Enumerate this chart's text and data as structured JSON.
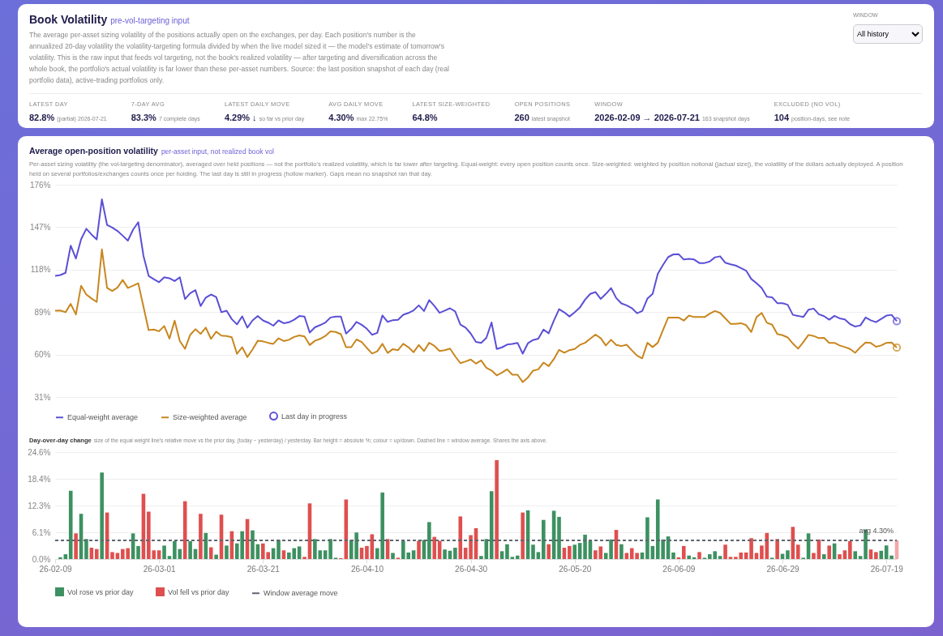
{
  "chart_data": [
    {
      "type": "other",
      "title": "Book Volatility",
      "subtitle": "pre-vol-targeting input",
      "annotations": [
        "The average per-asset sizing volatility of the positions actually open on the exchanges, per day. Each position's number is the annualized 20-day volatility the volatility-targeting formula divided by when the live model sized it — the model's estimate of tomorrow's volatility. This is the raw input that feeds vol targeting, not the book's realized volatility — after targeting and diversification across the whole book, the portfolio's actual volatility is far lower than these per-asset numbers. Source: the last position snapshot of each day (real portfolio data), active-trading portfolios only.",
        "WINDOW",
        "All history",
        "LATEST DAY",
        "82.8%",
        "(partial) 2026-07-21",
        "7-DAY AVG",
        "83.3%",
        "7 complete days",
        "LATEST DAILY MOVE",
        "4.29% ↓",
        "so far vs prior day",
        "AVG DAILY MOVE",
        "4.30%",
        "max 22.75%",
        "LATEST SIZE-WEIGHTED",
        "64.8%",
        "OPEN POSITIONS",
        "260",
        "latest snapshot",
        "WINDOW",
        "2026-02-09 → 2026-07-21",
        "163 snapshot days",
        "EXCLUDED (NO VOL)",
        "104",
        "position-days, see note"
      ]
    },
    {
      "type": "line",
      "title": "Average open-position volatility",
      "subtitle": "per-asset input, not realized book vol",
      "annotations": [
        "Per-asset sizing volatility (the vol-targeting denominator), averaged over held positions — not the portfolio's realized volatility, which is far lower after targeting. Equal-weight: every open position counts once. Size-weighted: weighted by position notional (|actual size|), the volatility of the dollars actually deployed. A position held on several portfolios/exchanges counts once per holding. The last day is still in progress (hollow marker). Gaps mean no snapshot ran that day."
      ],
      "x": [
        "2026-02-09",
        "2026-02-10",
        "2026-02-11",
        "2026-02-12",
        "2026-02-13",
        "2026-02-14",
        "2026-02-15",
        "2026-02-16",
        "2026-02-17",
        "2026-02-18",
        "2026-02-19",
        "2026-02-20",
        "2026-02-21",
        "2026-02-22",
        "2026-02-23",
        "2026-02-24",
        "2026-02-25",
        "2026-02-26",
        "2026-02-27",
        "2026-02-28",
        "2026-03-01",
        "2026-03-02",
        "2026-03-03",
        "2026-03-04",
        "2026-03-05",
        "2026-03-06",
        "2026-03-07",
        "2026-03-08",
        "2026-03-09",
        "2026-03-10",
        "2026-03-11",
        "2026-03-12",
        "2026-03-13",
        "2026-03-14",
        "2026-03-15",
        "2026-03-16",
        "2026-03-17",
        "2026-03-18",
        "2026-03-19",
        "2026-03-20",
        "2026-03-21",
        "2026-03-22",
        "2026-03-23",
        "2026-03-24",
        "2026-03-25",
        "2026-03-26",
        "2026-03-27",
        "2026-03-28",
        "2026-03-29",
        "2026-03-30",
        "2026-03-31",
        "2026-04-01",
        "2026-04-02",
        "2026-04-03",
        "2026-04-04",
        "2026-04-05",
        "2026-04-06",
        "2026-04-07",
        "2026-04-08",
        "2026-04-09",
        "2026-04-10",
        "2026-04-11",
        "2026-04-12",
        "2026-04-13",
        "2026-04-14",
        "2026-04-15",
        "2026-04-16",
        "2026-04-17",
        "2026-04-18",
        "2026-04-19",
        "2026-04-20",
        "2026-04-21",
        "2026-04-22",
        "2026-04-23",
        "2026-04-24",
        "2026-04-25",
        "2026-04-26",
        "2026-04-27",
        "2026-04-28",
        "2026-04-29",
        "2026-04-30",
        "2026-05-01",
        "2026-05-02",
        "2026-05-03",
        "2026-05-04",
        "2026-05-05",
        "2026-05-06",
        "2026-05-07",
        "2026-05-08",
        "2026-05-09",
        "2026-05-10",
        "2026-05-11",
        "2026-05-12",
        "2026-05-13",
        "2026-05-14",
        "2026-05-15",
        "2026-05-16",
        "2026-05-17",
        "2026-05-18",
        "2026-05-19",
        "2026-05-20",
        "2026-05-21",
        "2026-05-22",
        "2026-05-23",
        "2026-05-24",
        "2026-05-25",
        "2026-05-26",
        "2026-05-27",
        "2026-05-28",
        "2026-05-29",
        "2026-05-30",
        "2026-05-31",
        "2026-06-01",
        "2026-06-02",
        "2026-06-03",
        "2026-06-04",
        "2026-06-05",
        "2026-06-06",
        "2026-06-07",
        "2026-06-08",
        "2026-06-09",
        "2026-06-10",
        "2026-06-11",
        "2026-06-12",
        "2026-06-13",
        "2026-06-14",
        "2026-06-15",
        "2026-06-16",
        "2026-06-17",
        "2026-06-18",
        "2026-06-19",
        "2026-06-20",
        "2026-06-21",
        "2026-06-22",
        "2026-06-23",
        "2026-06-24",
        "2026-06-25",
        "2026-06-26",
        "2026-06-27",
        "2026-06-28",
        "2026-06-29",
        "2026-06-30",
        "2026-07-01",
        "2026-07-02",
        "2026-07-03",
        "2026-07-04",
        "2026-07-05",
        "2026-07-06",
        "2026-07-07",
        "2026-07-08",
        "2026-07-09",
        "2026-07-10",
        "2026-07-11",
        "2026-07-12",
        "2026-07-13",
        "2026-07-14",
        "2026-07-15",
        "2026-07-16",
        "2026-07-17",
        "2026-07-18",
        "2026-07-19",
        "2026-07-20",
        "2026-07-21"
      ],
      "series": [
        {
          "name": "Equal-weight average",
          "color": "#5b4fd6",
          "values": [
            113.7,
            114.3,
            115.8,
            134.4,
            125.6,
            138.8,
            145.9,
            142.0,
            138.6,
            166.0,
            148.5,
            146.7,
            144.4,
            141.2,
            137.8,
            145.3,
            150.4,
            127.5,
            113.7,
            111.5,
            109.4,
            112.8,
            112.1,
            110.2,
            112.8,
            97.9,
            101.9,
            104.0,
            93.1,
            98.9,
            101.0,
            99.3,
            88.9,
            89.9,
            84.2,
            80.6,
            86.1,
            78.4,
            83.3,
            86.3,
            83.3,
            81.8,
            79.7,
            83.3,
            81.4,
            82.0,
            83.8,
            86.3,
            85.9,
            75.0,
            78.6,
            80.1,
            81.8,
            85.3,
            85.9,
            85.9,
            74.3,
            77.6,
            82.3,
            80.3,
            77.6,
            73.5,
            74.8,
            86.7,
            82.3,
            83.5,
            83.7,
            87.2,
            88.4,
            90.2,
            93.6,
            89.7,
            97.2,
            93.2,
            88.5,
            90.0,
            91.6,
            89.5,
            80.5,
            78.4,
            74.3,
            68.6,
            67.9,
            71.4,
            81.9,
            63.8,
            64.9,
            66.8,
            67.3,
            68.0,
            60.6,
            67.7,
            69.9,
            70.8,
            77.1,
            74.5,
            83.2,
            91.0,
            88.8,
            86.0,
            88.8,
            92.1,
            97.5,
            101.4,
            102.7,
            98.0,
            101.4,
            105.4,
            98.6,
            94.9,
            93.6,
            91.7,
            88.2,
            89.7,
            98.2,
            101.4,
            115.1,
            121.2,
            126.6,
            128.4,
            128.6,
            124.9,
            125.4,
            124.9,
            122.5,
            122.5,
            123.6,
            126.4,
            127.1,
            122.7,
            121.6,
            120.8,
            119.1,
            117.3,
            111.6,
            108.8,
            105.4,
            99.5,
            99.1,
            95.1,
            95.1,
            94.0,
            87.1,
            86.4,
            85.6,
            90.6,
            91.4,
            87.5,
            86.2,
            83.8,
            86.4,
            84.7,
            84.0,
            80.8,
            79.1,
            79.9,
            85.3,
            83.4,
            82.1,
            84.3,
            86.6,
            87.1,
            82.8
          ]
        },
        {
          "name": "Size-weighted average",
          "color": "#c8861e",
          "values": [
            89.9,
            90.1,
            88.9,
            94.6,
            87.4,
            107.0,
            101.0,
            98.3,
            95.9,
            131.8,
            105.5,
            103.4,
            105.8,
            110.9,
            105.5,
            107.0,
            108.7,
            92.7,
            76.7,
            77.1,
            75.9,
            79.5,
            70.9,
            83.1,
            69.2,
            63.9,
            73.5,
            77.3,
            74.1,
            78.4,
            70.7,
            75.6,
            72.9,
            72.6,
            71.8,
            60.5,
            65.0,
            58.3,
            63.5,
            69.4,
            69.0,
            68.0,
            67.3,
            71.1,
            69.2,
            70.1,
            72.0,
            73.1,
            72.4,
            66.5,
            69.4,
            70.7,
            72.7,
            75.8,
            75.4,
            73.9,
            65.0,
            65.0,
            70.3,
            68.6,
            64.5,
            60.7,
            62.2,
            67.3,
            61.1,
            63.7,
            63.0,
            67.3,
            65.0,
            61.6,
            66.5,
            62.4,
            68.0,
            65.9,
            62.4,
            63.0,
            64.1,
            58.8,
            54.1,
            55.3,
            56.6,
            53.8,
            56.0,
            51.0,
            49.1,
            45.8,
            47.7,
            49.9,
            46.2,
            46.2,
            41.2,
            44.3,
            49.0,
            49.9,
            54.5,
            52.1,
            56.9,
            63.2,
            61.2,
            63.0,
            63.8,
            66.6,
            68.0,
            70.8,
            73.6,
            71.2,
            66.2,
            70.1,
            66.6,
            65.8,
            66.7,
            62.9,
            59.3,
            57.4,
            68.0,
            65.1,
            68.0,
            76.7,
            85.3,
            85.3,
            85.3,
            83.2,
            86.6,
            85.6,
            85.6,
            85.6,
            87.9,
            89.7,
            88.4,
            84.7,
            81.0,
            81.0,
            81.4,
            80.1,
            75.4,
            85.6,
            88.4,
            81.7,
            80.4,
            74.0,
            73.2,
            71.7,
            67.5,
            64.0,
            68.4,
            73.4,
            72.7,
            71.2,
            71.4,
            67.9,
            68.0,
            66.2,
            65.1,
            63.8,
            61.2,
            65.1,
            68.2,
            67.9,
            65.3,
            66.2,
            68.0,
            68.2,
            64.8
          ]
        },
        {
          "name": "Last day in progress",
          "type": "scatter",
          "color": "#5b4fd6",
          "colors": [
            "#5b4fd6",
            "#c8861e"
          ],
          "x": [
            "2026-07-21",
            "2026-07-21"
          ],
          "values": [
            82.8,
            64.8
          ]
        }
      ],
      "xlim": [
        "2026-02-09",
        "2026-07-21"
      ],
      "ylim": [
        31,
        176
      ],
      "yticks": [
        {
          "value": 31,
          "label": "31%"
        },
        {
          "value": 60,
          "label": "60%"
        },
        {
          "value": 89,
          "label": "89%"
        },
        {
          "value": 118,
          "label": "118%"
        },
        {
          "value": 147,
          "label": "147%"
        },
        {
          "value": 176,
          "label": "176%"
        }
      ],
      "tick_labels": "y",
      "grid": "y",
      "legend": "bottom"
    },
    {
      "type": "bar",
      "title": "Day-over-day change",
      "subtitle": "size of the equal weight line's relative move vs the prior day, (today − yesterday) / yesterday. Bar height = absolute %; colour = up/down. Dashed line = window average. Shares the axis above.",
      "annotations": [
        {
          "text": "avg 4.30%",
          "x": "2026-07-21",
          "y": 4.3
        }
      ],
      "x": [
        "2026-02-10",
        "2026-02-11",
        "2026-02-12",
        "2026-02-13",
        "2026-02-14",
        "2026-02-15",
        "2026-02-16",
        "2026-02-17",
        "2026-02-18",
        "2026-02-19",
        "2026-02-20",
        "2026-02-21",
        "2026-02-22",
        "2026-02-23",
        "2026-02-24",
        "2026-02-25",
        "2026-02-26",
        "2026-02-27",
        "2026-02-28",
        "2026-03-01",
        "2026-03-02",
        "2026-03-03",
        "2026-03-04",
        "2026-03-05",
        "2026-03-06",
        "2026-03-07",
        "2026-03-08",
        "2026-03-09",
        "2026-03-10",
        "2026-03-11",
        "2026-03-12",
        "2026-03-13",
        "2026-03-14",
        "2026-03-15",
        "2026-03-16",
        "2026-03-17",
        "2026-03-18",
        "2026-03-19",
        "2026-03-20",
        "2026-03-21",
        "2026-03-22",
        "2026-03-23",
        "2026-03-24",
        "2026-03-25",
        "2026-03-26",
        "2026-03-27",
        "2026-03-28",
        "2026-03-29",
        "2026-03-30",
        "2026-03-31",
        "2026-04-01",
        "2026-04-02",
        "2026-04-03",
        "2026-04-04",
        "2026-04-05",
        "2026-04-06",
        "2026-04-07",
        "2026-04-08",
        "2026-04-09",
        "2026-04-10",
        "2026-04-11",
        "2026-04-12",
        "2026-04-13",
        "2026-04-14",
        "2026-04-15",
        "2026-04-16",
        "2026-04-17",
        "2026-04-18",
        "2026-04-19",
        "2026-04-20",
        "2026-04-21",
        "2026-04-22",
        "2026-04-23",
        "2026-04-24",
        "2026-04-25",
        "2026-04-26",
        "2026-04-27",
        "2026-04-28",
        "2026-04-29",
        "2026-04-30",
        "2026-05-01",
        "2026-05-02",
        "2026-05-03",
        "2026-05-04",
        "2026-05-05",
        "2026-05-06",
        "2026-05-07",
        "2026-05-08",
        "2026-05-09",
        "2026-05-10",
        "2026-05-11",
        "2026-05-12",
        "2026-05-13",
        "2026-05-14",
        "2026-05-15",
        "2026-05-16",
        "2026-05-17",
        "2026-05-18",
        "2026-05-19",
        "2026-05-20",
        "2026-05-21",
        "2026-05-22",
        "2026-05-23",
        "2026-05-24",
        "2026-05-25",
        "2026-05-26",
        "2026-05-27",
        "2026-05-28",
        "2026-05-29",
        "2026-05-30",
        "2026-05-31",
        "2026-06-01",
        "2026-06-02",
        "2026-06-03",
        "2026-06-04",
        "2026-06-05",
        "2026-06-06",
        "2026-06-07",
        "2026-06-08",
        "2026-06-09",
        "2026-06-10",
        "2026-06-11",
        "2026-06-12",
        "2026-06-13",
        "2026-06-14",
        "2026-06-15",
        "2026-06-16",
        "2026-06-17",
        "2026-06-18",
        "2026-06-19",
        "2026-06-20",
        "2026-06-21",
        "2026-06-22",
        "2026-06-23",
        "2026-06-24",
        "2026-06-25",
        "2026-06-26",
        "2026-06-27",
        "2026-06-28",
        "2026-06-29",
        "2026-06-30",
        "2026-07-01",
        "2026-07-02",
        "2026-07-03",
        "2026-07-04",
        "2026-07-05",
        "2026-07-06",
        "2026-07-07",
        "2026-07-08",
        "2026-07-09",
        "2026-07-10",
        "2026-07-11",
        "2026-07-12",
        "2026-07-13",
        "2026-07-14",
        "2026-07-15",
        "2026-07-16",
        "2026-07-17",
        "2026-07-18",
        "2026-07-19",
        "2026-07-20"
      ],
      "series": [
        {
          "name": "Vol rose vs prior day",
          "color": "#3d9161",
          "values": [
            0.4,
            1.1,
            15.7,
            null,
            10.4,
            4.6,
            null,
            null,
            19.9,
            null,
            null,
            null,
            null,
            null,
            5.9,
            3.0,
            null,
            null,
            null,
            null,
            3.1,
            0.7,
            4.1,
            2.3,
            null,
            4.1,
            2.3,
            null,
            6.0,
            null,
            1.0,
            null,
            3.1,
            null,
            3.6,
            6.4,
            null,
            6.6,
            3.4,
            null,
            null,
            2.5,
            4.4,
            null,
            1.5,
            2.5,
            2.9,
            null,
            null,
            4.6,
            2.0,
            2.0,
            4.6,
            0.3,
            null,
            null,
            4.4,
            6.1,
            null,
            null,
            null,
            2.5,
            15.3,
            null,
            1.4,
            null,
            4.1,
            1.5,
            2.0,
            null,
            4.4,
            8.5,
            null,
            null,
            2.2,
            1.9,
            2.6,
            null,
            null,
            null,
            null,
            0.7,
            4.6,
            15.6,
            null,
            1.8,
            3.4,
            0.5,
            0.8,
            null,
            11.2,
            3.3,
            1.6,
            9.0,
            null,
            11.1,
            9.7,
            null,
            null,
            3.3,
            3.7,
            5.6,
            4.1,
            null,
            null,
            1.4,
            4.5,
            null,
            3.4,
            null,
            null,
            null,
            1.5,
            9.6,
            3.0,
            13.7,
            4.5,
            5.2,
            1.5,
            null,
            null,
            0.8,
            0.4,
            null,
            0.3,
            1.1,
            1.8,
            0.7,
            null,
            null,
            null,
            null,
            null,
            null,
            null,
            null,
            null,
            0.3,
            null,
            1.2,
            2.0,
            null,
            null,
            0.3,
            5.9,
            null,
            null,
            1.1,
            null,
            3.6,
            null,
            null,
            null,
            1.8,
            0.7,
            6.8,
            null,
            null,
            1.9,
            3.1,
            0.8
          ]
        },
        {
          "name": "Vol fell vs prior day",
          "color": "#df4f4f",
          "values": [
            null,
            null,
            null,
            5.9,
            null,
            null,
            2.6,
            2.3,
            null,
            10.7,
            1.6,
            1.4,
            2.3,
            2.5,
            null,
            null,
            15.0,
            10.9,
            2.0,
            2.0,
            null,
            null,
            null,
            null,
            13.3,
            null,
            null,
            10.4,
            null,
            2.7,
            null,
            10.2,
            null,
            6.4,
            null,
            null,
            9.2,
            null,
            null,
            3.6,
            1.6,
            null,
            null,
            2.0,
            null,
            null,
            null,
            0.5,
            12.8,
            null,
            null,
            null,
            null,
            null,
            0.2,
            13.7,
            null,
            null,
            2.6,
            3.0,
            5.7,
            null,
            null,
            4.6,
            null,
            0.3,
            null,
            null,
            null,
            4.2,
            null,
            null,
            5.1,
            4.2,
            null,
            null,
            null,
            9.8,
            2.6,
            5.5,
            7.1,
            null,
            null,
            null,
            22.75,
            null,
            null,
            null,
            null,
            10.7,
            null,
            null,
            null,
            null,
            3.4,
            null,
            null,
            2.6,
            3.0,
            null,
            null,
            null,
            null,
            2.0,
            2.9,
            null,
            null,
            6.7,
            null,
            1.4,
            2.5,
            1.4,
            null,
            null,
            null,
            null,
            null,
            null,
            null,
            0.4,
            3.0,
            null,
            null,
            1.6,
            null,
            null,
            null,
            null,
            3.3,
            0.5,
            0.5,
            1.5,
            1.5,
            4.8,
            1.4,
            3.1,
            6.0,
            null,
            4.6,
            null,
            null,
            7.4,
            3.3,
            null,
            null,
            1.4,
            4.5,
            null,
            3.1,
            null,
            1.1,
            2.0,
            4.1,
            null,
            null,
            null,
            2.2,
            1.6,
            null,
            null,
            null
          ]
        },
        {
          "color": "#f3a7a7",
          "x": [
            "2026-07-21"
          ],
          "values": [
            4.29
          ]
        },
        {
          "name": "Window average move",
          "type": "line",
          "line_style": "dashed",
          "color": "#5f6670",
          "x": [
            "2026-02-09",
            "2026-07-21"
          ],
          "values": [
            4.3,
            4.3
          ]
        }
      ],
      "xlim": [
        "2026-02-09",
        "2026-07-21"
      ],
      "xticks": [
        {
          "value": "2026-02-09",
          "label": "26-02-09"
        },
        {
          "value": "2026-03-01",
          "label": "26-03-01"
        },
        {
          "value": "2026-03-21",
          "label": "26-03-21"
        },
        {
          "value": "2026-04-10",
          "label": "26-04-10"
        },
        {
          "value": "2026-04-30",
          "label": "26-04-30"
        },
        {
          "value": "2026-05-20",
          "label": "26-05-20"
        },
        {
          "value": "2026-06-09",
          "label": "26-06-09"
        },
        {
          "value": "2026-06-29",
          "label": "26-06-29"
        },
        {
          "value": "2026-07-19",
          "label": "26-07-19"
        }
      ],
      "ylim": [
        0,
        24.6
      ],
      "yticks": [
        {
          "value": 0,
          "label": "0.0%"
        },
        {
          "value": 6.15,
          "label": "6.1%"
        },
        {
          "value": 12.3,
          "label": "12.3%"
        },
        {
          "value": 18.45,
          "label": "18.4%"
        },
        {
          "value": 24.6,
          "label": "24.6%"
        }
      ],
      "grid": "y",
      "legend": "bottom"
    }
  ]
}
